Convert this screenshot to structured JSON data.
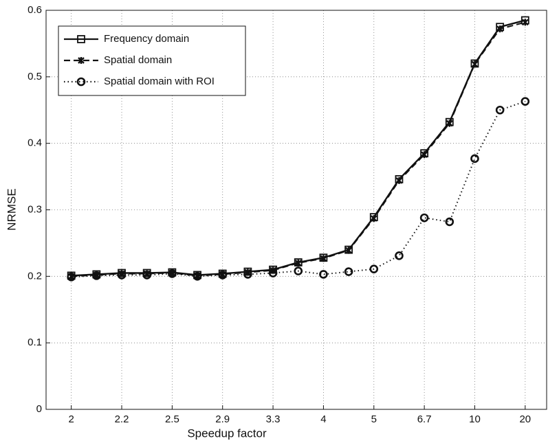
{
  "chart_data": {
    "type": "line",
    "x_label": "Speedup factor",
    "y_label": "NRMSE",
    "categories": [
      "2",
      null,
      "2.2",
      null,
      "2.5",
      null,
      "2.9",
      null,
      "3.3",
      null,
      "4",
      null,
      "5",
      null,
      "6.7",
      null,
      "10",
      null,
      "20"
    ],
    "series": [
      {
        "name": "Frequency domain",
        "color": "#111111",
        "line_style": "solid",
        "marker": "square",
        "values": [
          0.201,
          0.203,
          0.205,
          0.205,
          0.206,
          0.202,
          0.204,
          0.207,
          0.21,
          0.221,
          0.228,
          0.24,
          0.289,
          0.346,
          0.385,
          0.432,
          0.52,
          0.575,
          0.585
        ]
      },
      {
        "name": "Spatial domain",
        "color": "#111111",
        "line_style": "dashed",
        "marker": "star",
        "values": [
          0.2,
          0.202,
          0.204,
          0.204,
          0.205,
          0.201,
          0.203,
          0.206,
          0.209,
          0.22,
          0.227,
          0.239,
          0.287,
          0.344,
          0.383,
          0.43,
          0.519,
          0.572,
          0.582
        ]
      },
      {
        "name": "Spatial domain with ROI",
        "color": "#111111",
        "line_style": "dotted",
        "marker": "circle",
        "values": [
          0.199,
          0.201,
          0.202,
          0.202,
          0.204,
          0.2,
          0.202,
          0.203,
          0.205,
          0.208,
          0.203,
          0.207,
          0.211,
          0.231,
          0.288,
          0.282,
          0.377,
          0.45,
          0.463
        ]
      }
    ],
    "ylim": [
      0,
      0.6
    ],
    "yticks": [
      0,
      0.1,
      0.2,
      0.3,
      0.4,
      0.5,
      0.6
    ],
    "grid": true,
    "legend_position": "upper left"
  }
}
